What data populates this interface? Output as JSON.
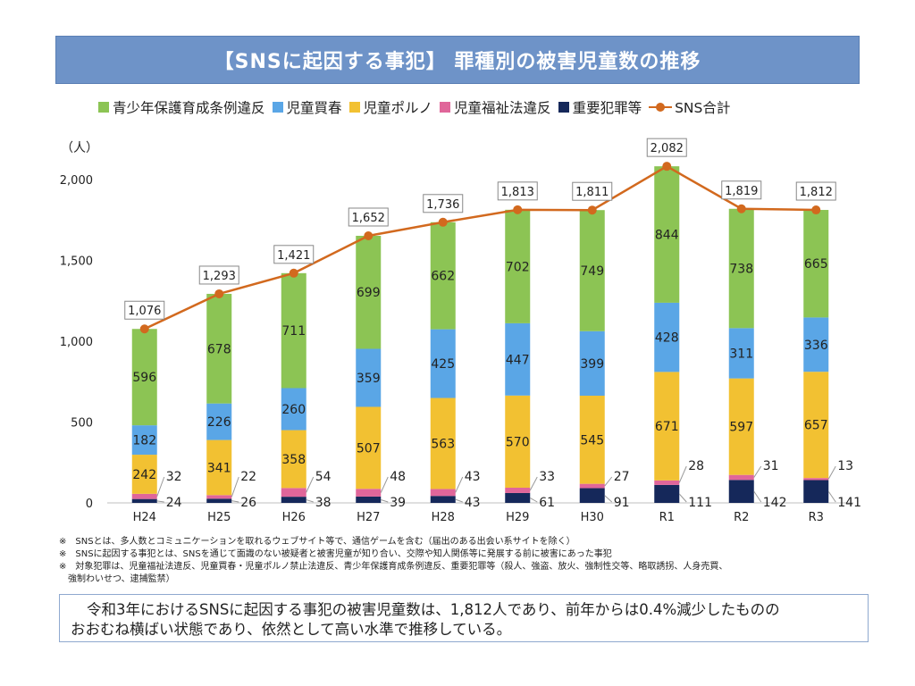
{
  "title": "【SNSに起因する事犯】 罪種別の被害児童数の推移",
  "unit_label": "（人）",
  "legend": [
    {
      "label": "青少年保護育成条例違反",
      "color": "#8cc454",
      "kind": "bar"
    },
    {
      "label": "児童買春",
      "color": "#5aa6e6",
      "kind": "bar"
    },
    {
      "label": "児童ポルノ",
      "color": "#f2c132",
      "kind": "bar"
    },
    {
      "label": "児童福祉法違反",
      "color": "#e0669a",
      "kind": "bar"
    },
    {
      "label": "重要犯罪等",
      "color": "#15285a",
      "kind": "bar"
    },
    {
      "label": "SNS合計",
      "color": "#d2691e",
      "kind": "line"
    }
  ],
  "chart_data": {
    "type": "bar",
    "stacked": true,
    "categories": [
      "H24",
      "H25",
      "H26",
      "H27",
      "H28",
      "H29",
      "H30",
      "R1",
      "R2",
      "R3"
    ],
    "series": [
      {
        "name": "重要犯罪等",
        "color": "#15285a",
        "values": [
          24,
          26,
          38,
          39,
          43,
          61,
          91,
          111,
          142,
          141
        ]
      },
      {
        "name": "児童福祉法違反",
        "color": "#e0669a",
        "values": [
          32,
          22,
          54,
          48,
          43,
          33,
          27,
          28,
          31,
          13
        ]
      },
      {
        "name": "児童ポルノ",
        "color": "#f2c132",
        "values": [
          242,
          341,
          358,
          507,
          563,
          570,
          545,
          671,
          597,
          657
        ]
      },
      {
        "name": "児童買春",
        "color": "#5aa6e6",
        "values": [
          182,
          226,
          260,
          359,
          425,
          447,
          399,
          428,
          311,
          336
        ]
      },
      {
        "name": "青少年保護育成条例違反",
        "color": "#8cc454",
        "values": [
          596,
          678,
          711,
          699,
          662,
          702,
          749,
          844,
          738,
          665
        ]
      }
    ],
    "line_series": {
      "name": "SNS合計",
      "color": "#d2691e",
      "values": [
        1076,
        1293,
        1421,
        1652,
        1736,
        1813,
        1811,
        2082,
        1819,
        1812
      ]
    },
    "total_labels": [
      "1,076",
      "1,293",
      "1,421",
      "1,652",
      "1,736",
      "1,813",
      "1,811",
      "2,082",
      "1,819",
      "1,812"
    ],
    "ylim": [
      0,
      2000
    ],
    "yticks": [
      0,
      500,
      1000,
      1500,
      2000
    ],
    "ytick_labels": [
      "0",
      "500",
      "1,000",
      "1,500",
      "2,000"
    ],
    "ylabel": "（人）",
    "legend_position": "top",
    "grid": false
  },
  "notes": [
    "※　SNSとは、多人数とコミュニケーションを取れるウェブサイト等で、通信ゲームを含む（届出のある出会い系サイトを除く）",
    "※　SNSに起因する事犯とは、SNSを通じて面識のない被疑者と被害児童が知り合い、交際や知人関係等に発展する前に被害にあった事犯",
    "※　対象犯罪は、児童福祉法違反、児童買春・児童ポルノ禁止法違反、青少年保護育成条例違反、重要犯罪等（殺人、強盗、放火、強制性交等、略取誘拐、人身売買、",
    "　強制わいせつ、逮捕監禁）"
  ],
  "summary": {
    "line1": "令和3年におけるSNSに起因する事犯の被害児童数は、1,812人であり、前年からは0.4%減少したものの",
    "line2": "おおむね横ばい状態であり、依然として高い水準で推移している。"
  }
}
